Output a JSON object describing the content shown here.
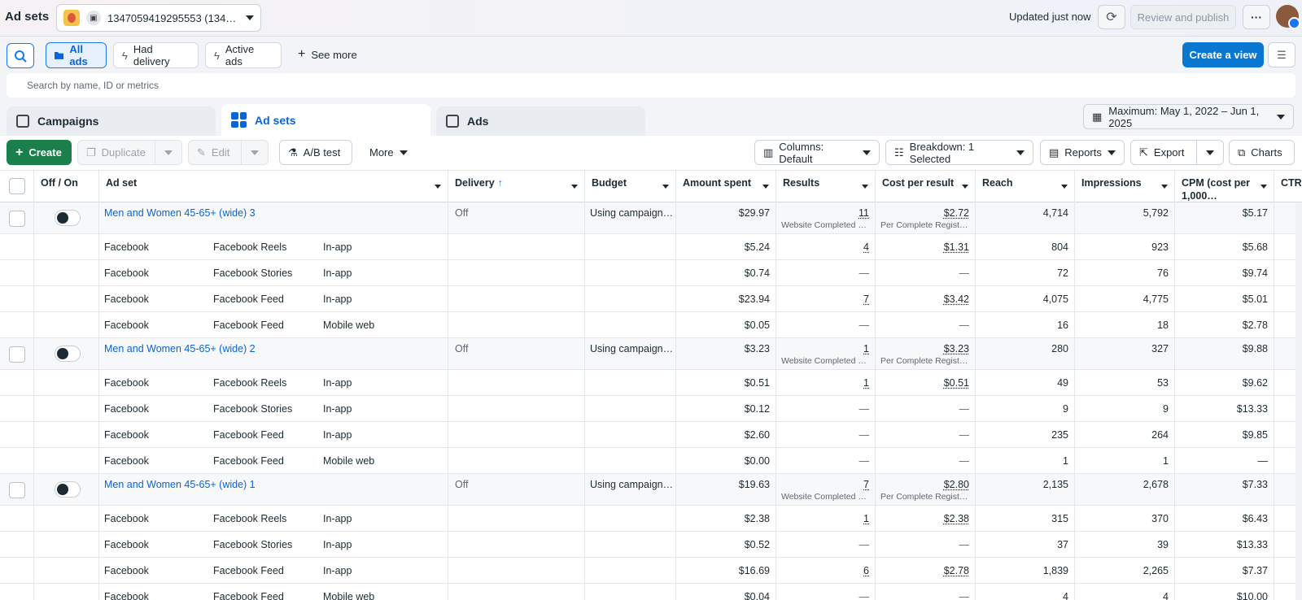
{
  "header": {
    "title": "Ad sets",
    "account": "1347059419295553 (134…",
    "updated": "Updated just now",
    "review_publish": "Review and publish",
    "more": "···"
  },
  "filters": {
    "all_ads": "All ads",
    "had_delivery": "Had delivery",
    "active_ads": "Active ads",
    "see_more": "See more",
    "create_view": "Create a view"
  },
  "search": {
    "placeholder": "Search by name, ID or metrics"
  },
  "tabs": [
    {
      "label": "Campaigns"
    },
    {
      "label": "Ad sets"
    },
    {
      "label": "Ads"
    }
  ],
  "date_range": "Maximum: May 1, 2022 – Jun 1, 2025",
  "toolbar": {
    "create": "Create",
    "duplicate": "Duplicate",
    "edit": "Edit",
    "ab_test": "A/B test",
    "more": "More",
    "columns": "Columns: Default",
    "breakdown": "Breakdown: 1 Selected",
    "reports": "Reports",
    "export": "Export",
    "charts": "Charts"
  },
  "columns": {
    "toggle": "Off / On",
    "adset": "Ad set",
    "delivery": "Delivery",
    "budget": "Budget",
    "amount_spent": "Amount spent",
    "results": "Results",
    "cost_per_result": "Cost per result",
    "reach": "Reach",
    "impressions": "Impressions",
    "cpm": "CPM (cost per 1,000…",
    "ctr": "CTR"
  },
  "rows": [
    {
      "name": "Men and Women 45-65+ (wide) 3",
      "delivery": "Off",
      "budget": "Using campaign…",
      "spent": "$29.97",
      "results": "11",
      "results_sub": "Website Completed …",
      "cpr": "$2.72",
      "cpr_sub": "Per Complete Regist…",
      "reach": "4,714",
      "impressions": "5,792",
      "cpm": "$5.17",
      "children": [
        {
          "platform": "Facebook",
          "placement": "Facebook Reels",
          "device": "In-app",
          "spent": "$5.24",
          "results": "4",
          "cpr": "$1.31",
          "reach": "804",
          "impressions": "923",
          "cpm": "$5.68"
        },
        {
          "platform": "Facebook",
          "placement": "Facebook Stories",
          "device": "In-app",
          "spent": "$0.74",
          "results": "—",
          "cpr": "—",
          "reach": "72",
          "impressions": "76",
          "cpm": "$9.74"
        },
        {
          "platform": "Facebook",
          "placement": "Facebook Feed",
          "device": "In-app",
          "spent": "$23.94",
          "results": "7",
          "cpr": "$3.42",
          "reach": "4,075",
          "impressions": "4,775",
          "cpm": "$5.01"
        },
        {
          "platform": "Facebook",
          "placement": "Facebook Feed",
          "device": "Mobile web",
          "spent": "$0.05",
          "results": "—",
          "cpr": "—",
          "reach": "16",
          "impressions": "18",
          "cpm": "$2.78"
        }
      ]
    },
    {
      "name": "Men and Women 45-65+ (wide) 2",
      "delivery": "Off",
      "budget": "Using campaign…",
      "spent": "$3.23",
      "results": "1",
      "results_sub": "Website Completed …",
      "cpr": "$3.23",
      "cpr_sub": "Per Complete Regist…",
      "reach": "280",
      "impressions": "327",
      "cpm": "$9.88",
      "children": [
        {
          "platform": "Facebook",
          "placement": "Facebook Reels",
          "device": "In-app",
          "spent": "$0.51",
          "results": "1",
          "cpr": "$0.51",
          "reach": "49",
          "impressions": "53",
          "cpm": "$9.62"
        },
        {
          "platform": "Facebook",
          "placement": "Facebook Stories",
          "device": "In-app",
          "spent": "$0.12",
          "results": "—",
          "cpr": "—",
          "reach": "9",
          "impressions": "9",
          "cpm": "$13.33"
        },
        {
          "platform": "Facebook",
          "placement": "Facebook Feed",
          "device": "In-app",
          "spent": "$2.60",
          "results": "—",
          "cpr": "—",
          "reach": "235",
          "impressions": "264",
          "cpm": "$9.85"
        },
        {
          "platform": "Facebook",
          "placement": "Facebook Feed",
          "device": "Mobile web",
          "spent": "$0.00",
          "results": "—",
          "cpr": "—",
          "reach": "1",
          "impressions": "1",
          "cpm": "—"
        }
      ]
    },
    {
      "name": "Men and Women 45-65+ (wide) 1",
      "delivery": "Off",
      "budget": "Using campaign…",
      "spent": "$19.63",
      "results": "7",
      "results_sub": "Website Completed …",
      "cpr": "$2.80",
      "cpr_sub": "Per Complete Regist…",
      "reach": "2,135",
      "impressions": "2,678",
      "cpm": "$7.33",
      "children": [
        {
          "platform": "Facebook",
          "placement": "Facebook Reels",
          "device": "In-app",
          "spent": "$2.38",
          "results": "1",
          "cpr": "$2.38",
          "reach": "315",
          "impressions": "370",
          "cpm": "$6.43"
        },
        {
          "platform": "Facebook",
          "placement": "Facebook Stories",
          "device": "In-app",
          "spent": "$0.52",
          "results": "—",
          "cpr": "—",
          "reach": "37",
          "impressions": "39",
          "cpm": "$13.33"
        },
        {
          "platform": "Facebook",
          "placement": "Facebook Feed",
          "device": "In-app",
          "spent": "$16.69",
          "results": "6",
          "cpr": "$2.78",
          "reach": "1,839",
          "impressions": "2,265",
          "cpm": "$7.37"
        },
        {
          "platform": "Facebook",
          "placement": "Facebook Feed",
          "device": "Mobile web",
          "spent": "$0.04",
          "results": "—",
          "cpr": "—",
          "reach": "4",
          "impressions": "4",
          "cpm": "$10.00"
        }
      ]
    }
  ],
  "colors": {
    "accent": "#1877f2",
    "create": "#1a7f4b",
    "link": "#0a64d8"
  },
  "icons": [
    "search-icon",
    "folder-icon",
    "lightning-icon",
    "plus-icon",
    "refresh-icon",
    "sliders-icon",
    "calendar-icon",
    "columns-icon",
    "breakdown-icon",
    "reports-icon",
    "export-icon",
    "chart-icon",
    "flask-icon",
    "pencil-icon",
    "copy-icon"
  ]
}
